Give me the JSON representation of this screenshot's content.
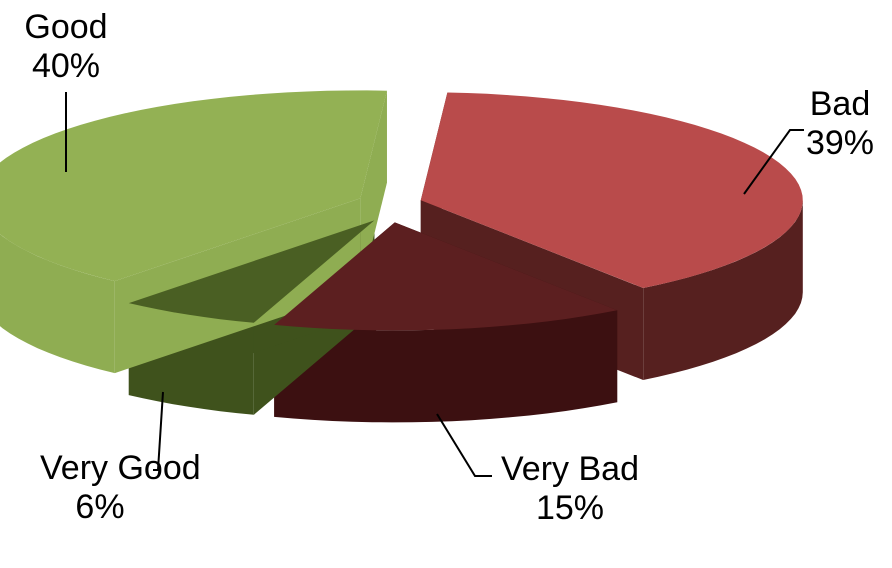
{
  "chart_data": {
    "type": "pie",
    "style": "3d-exploded",
    "legend": "none",
    "slices": [
      {
        "name": "Bad",
        "value": 39,
        "value_label": "39%",
        "color": "#b94b4b",
        "side_color": "#56201f"
      },
      {
        "name": "Very Bad",
        "value": 15,
        "value_label": "15%",
        "color": "#5c1f20",
        "side_color": "#3c1011"
      },
      {
        "name": "Very Good",
        "value": 6,
        "value_label": "6%",
        "color": "#4a5f23",
        "side_color": "#3f521c"
      },
      {
        "name": "Good",
        "value": 40,
        "value_label": "40%",
        "color": "#93b154",
        "side_color": "#8fad52"
      }
    ]
  }
}
